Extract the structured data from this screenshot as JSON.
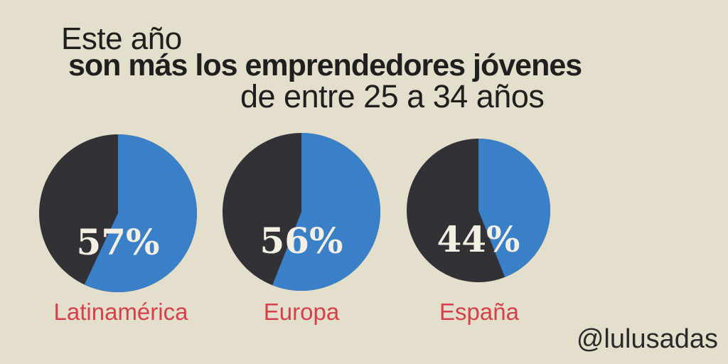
{
  "headline": {
    "line1": "Este año",
    "line2": "son más los emprendedores jóvenes",
    "line3": "de entre 25 a 34 años"
  },
  "chart_data": {
    "type": "pie",
    "categories": [
      "Latinamérica",
      "Europa",
      "España"
    ],
    "values": [
      57,
      56,
      44
    ],
    "value_labels": [
      "57%",
      "56%",
      "44%"
    ],
    "colors": {
      "highlight": "#3a80c8",
      "remainder": "#323236",
      "label": "#d6404a"
    },
    "title": "",
    "legend": "none"
  },
  "footer": {
    "handle": "@lulusadas"
  }
}
